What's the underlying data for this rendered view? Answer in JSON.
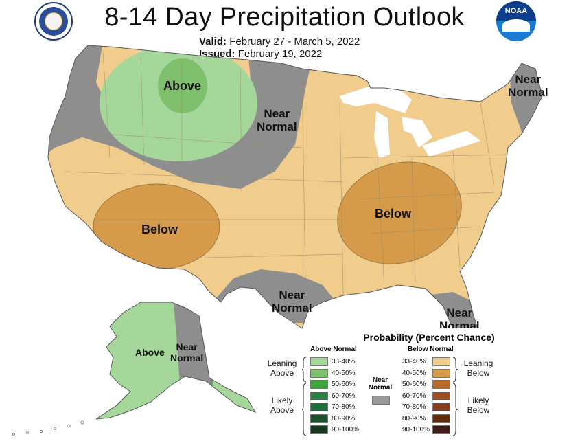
{
  "header": {
    "title": "8-14 Day Precipitation Outlook",
    "valid_label": "Valid:",
    "valid_value": "February 27 - March 5, 2022",
    "issued_label": "Issued:",
    "issued_value": "February 19, 2022"
  },
  "logos": {
    "noaa_text": "NOAA"
  },
  "regions": {
    "above_nw": "Above",
    "near_north_1": "Near",
    "near_north_2": "Normal",
    "near_ne_1": "Near",
    "near_ne_2": "Normal",
    "below_sw": "Below",
    "below_se": "Below",
    "near_tx_1": "Near",
    "near_tx_2": "Normal",
    "near_fl_1": "Near",
    "near_fl_2": "Normal",
    "ak_above": "Above",
    "ak_near_1": "Near",
    "ak_near_2": "Normal"
  },
  "legend": {
    "title": "Probability (Percent Chance)",
    "above_header": "Above Normal",
    "below_header": "Below Normal",
    "near_header_1": "Near",
    "near_header_2": "Normal",
    "leaning_above_1": "Leaning",
    "leaning_above_2": "Above",
    "likely_above_1": "Likely",
    "likely_above_2": "Above",
    "leaning_below_1": "Leaning",
    "leaning_below_2": "Below",
    "likely_below_1": "Likely",
    "likely_below_2": "Below",
    "ranges": [
      "33-40%",
      "40-50%",
      "50-60%",
      "60-70%",
      "70-80%",
      "80-90%",
      "90-100%"
    ],
    "above_colors": [
      "#a6d79a",
      "#7fc06c",
      "#3fa43a",
      "#2d7f45",
      "#1f6f3b",
      "#1f4f2c",
      "#17361e"
    ],
    "below_colors": [
      "#f0cd8c",
      "#d59b4a",
      "#b86a2c",
      "#9b4f22",
      "#86401f",
      "#5e2d0e",
      "#3d1b1b"
    ],
    "near_color": "#999999"
  },
  "colors": {
    "above_lean": "#a6d79a",
    "above_mid": "#7fc06c",
    "below_lean": "#f0cd8c",
    "below_mid": "#d59b4a",
    "near": "#8e8e8e",
    "lakes": "#ffffff"
  }
}
